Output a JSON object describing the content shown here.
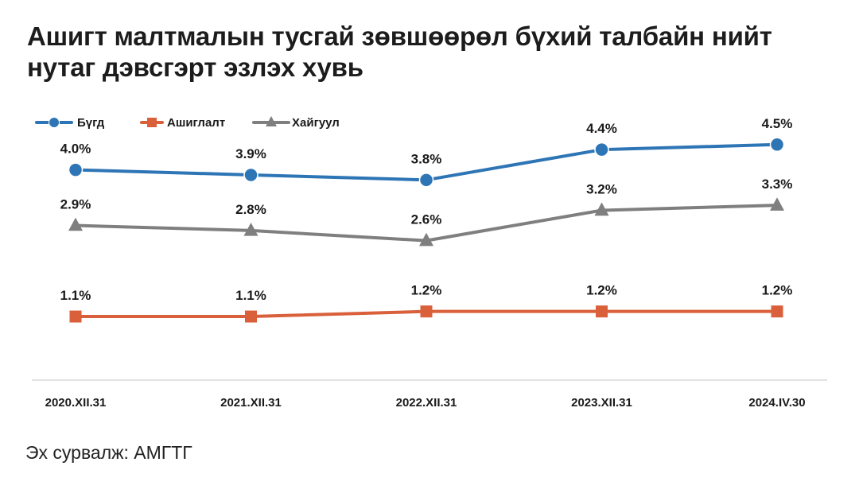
{
  "title": "Ашигт малтмалын тусгай зөвшөөрөл бүхий талбайн нийт нутаг дэвсгэрт эзлэх хувь",
  "source": "Эх сурвалж: АМГТГ",
  "colors": {
    "Бүгд": "#2e75b6",
    "Ашиглалт": "#d9603b",
    "Хайгуул": "#7f7f7f",
    "axis": "#d9d9d9"
  },
  "chart_data": {
    "type": "line",
    "categories": [
      "2020.XII.31",
      "2021.XII.31",
      "2022.XII.31",
      "2023.XII.31",
      "2024.IV.30"
    ],
    "value_suffix": "%",
    "series": [
      {
        "name": "Бүгд",
        "marker": "circle",
        "values": [
          4.0,
          3.9,
          3.8,
          4.4,
          4.5
        ],
        "labels": [
          "4.0%",
          "3.9%",
          "3.8%",
          "4.4%",
          "4.5%"
        ]
      },
      {
        "name": "Ашиглалт",
        "marker": "square",
        "values": [
          1.1,
          1.1,
          1.2,
          1.2,
          1.2
        ],
        "labels": [
          "1.1%",
          "1.1%",
          "1.2%",
          "1.2%",
          "1.2%"
        ]
      },
      {
        "name": "Хайгуул",
        "marker": "triangle",
        "values": [
          2.9,
          2.8,
          2.6,
          3.2,
          3.3
        ],
        "labels": [
          "2.9%",
          "2.8%",
          "2.6%",
          "3.2%",
          "3.3%"
        ]
      }
    ],
    "ylim": [
      0,
      5
    ],
    "grid": false,
    "legend_position": "top-left",
    "xlabel": "",
    "ylabel": ""
  }
}
